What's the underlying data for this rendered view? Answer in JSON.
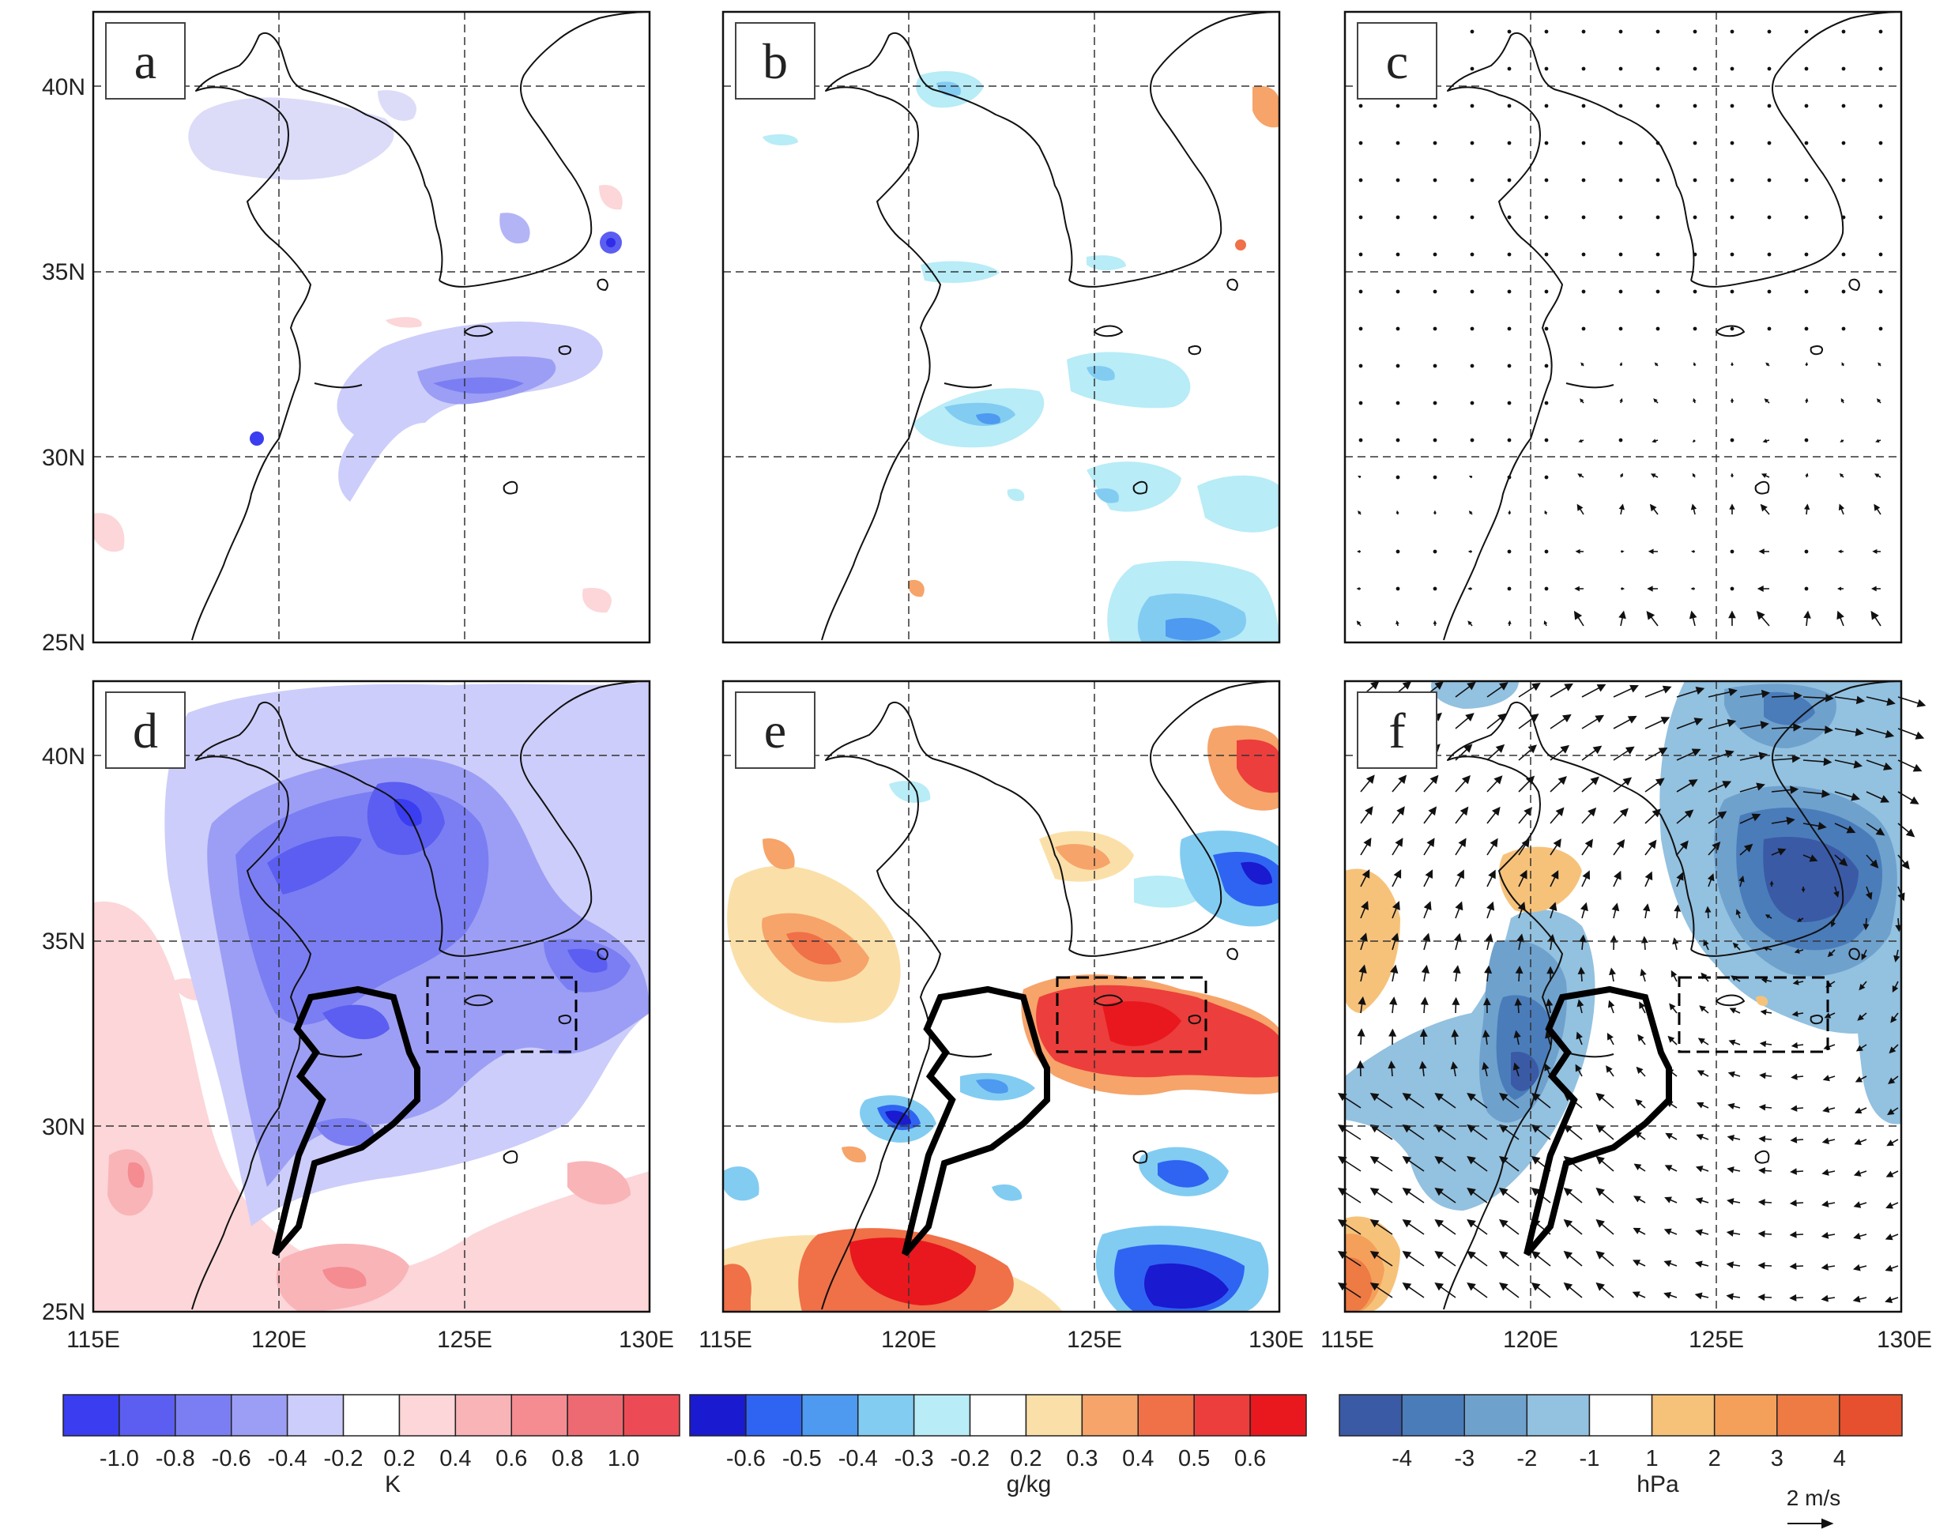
{
  "axes": {
    "lat_ticks": [
      "40N",
      "35N",
      "30N",
      "25N"
    ],
    "lon_ticks": [
      "115E",
      "120E",
      "125E",
      "130E"
    ]
  },
  "panels": [
    {
      "label": "a"
    },
    {
      "label": "b"
    },
    {
      "label": "c"
    },
    {
      "label": "d"
    },
    {
      "label": "e"
    },
    {
      "label": "f"
    }
  ],
  "colorbars": [
    {
      "unit": "K",
      "levels": [
        "-1.0",
        "-0.8",
        "-0.6",
        "-0.4",
        "-0.2",
        "0.2",
        "0.4",
        "0.6",
        "0.8",
        "1.0"
      ],
      "colors": [
        "#3a3df0",
        "#5b5ef0",
        "#7b7ef2",
        "#9c9ef5",
        "#cccdfa",
        "#ffffff",
        "#fcd6d8",
        "#f9b4b8",
        "#f48c92",
        "#ee6a72",
        "#ec4b55"
      ]
    },
    {
      "unit": "g/kg",
      "levels": [
        "-0.6",
        "-0.5",
        "-0.4",
        "-0.3",
        "-0.2",
        "0.2",
        "0.3",
        "0.4",
        "0.5",
        "0.6"
      ],
      "colors": [
        "#1a1ad0",
        "#2f64f2",
        "#4d9af0",
        "#82ccf2",
        "#b8ecf7",
        "#ffffff",
        "#fae0a8",
        "#f6a46a",
        "#f07048",
        "#ec3e3c",
        "#e8181e"
      ]
    },
    {
      "unit": "hPa",
      "levels": [
        "-4",
        "-3",
        "-2",
        "-1",
        "1",
        "2",
        "3",
        "4"
      ],
      "colors": [
        "#3a5aa6",
        "#4a7cba",
        "#6fa1cd",
        "#93c1e0",
        "#ffffff",
        "#f6c27a",
        "#f4a05a",
        "#ee7a44",
        "#e6502e"
      ],
      "vector_ref": "2 m/s"
    }
  ]
}
